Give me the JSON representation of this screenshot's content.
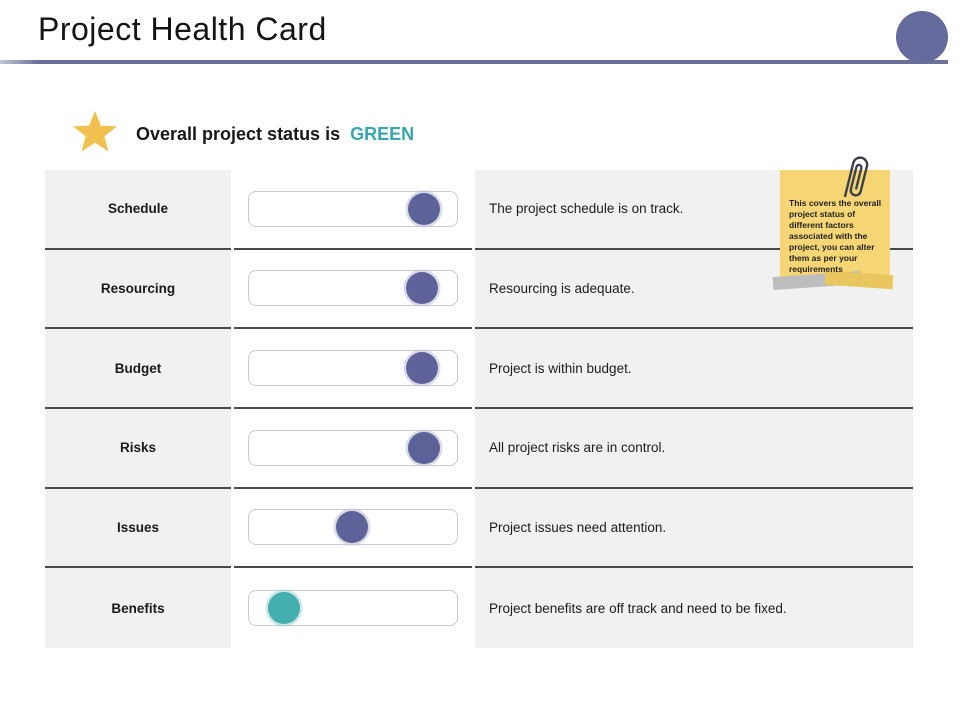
{
  "slide": {
    "title": "Project Health Card",
    "status_prefix": "Overall project status is",
    "status_value": "GREEN",
    "note_text": "This covers the overall project status of different factors associated with the project, you can alter them as per your requirements"
  },
  "icons": {
    "status_icon": "star-icon",
    "note_icon": "paperclip-icon"
  },
  "colors": {
    "accent_periwinkle": "#656b9c",
    "status_green_text": "#38a6af",
    "knob_purple": "#5d6298",
    "knob_teal": "#43afae",
    "star_gold": "#f1c14f",
    "note_yellow": "#f6d674",
    "row_background": "#f1f1f1",
    "row_separator": "#4a4a4a"
  },
  "rows": [
    {
      "label": "Schedule",
      "value_pct": 90,
      "knob": "purple",
      "description": "The project schedule is on track."
    },
    {
      "label": "Resourcing",
      "value_pct": 89,
      "knob": "purple",
      "description": "Resourcing is adequate."
    },
    {
      "label": "Budget",
      "value_pct": 89,
      "knob": "purple",
      "description": "Project is within budget."
    },
    {
      "label": "Risks",
      "value_pct": 90,
      "knob": "purple",
      "description": "All project risks are in control."
    },
    {
      "label": "Issues",
      "value_pct": 48,
      "knob": "purple",
      "description": "Project issues need attention."
    },
    {
      "label": "Benefits",
      "value_pct": 9,
      "knob": "teal",
      "description": "Project benefits are off track and need to be fixed."
    }
  ]
}
